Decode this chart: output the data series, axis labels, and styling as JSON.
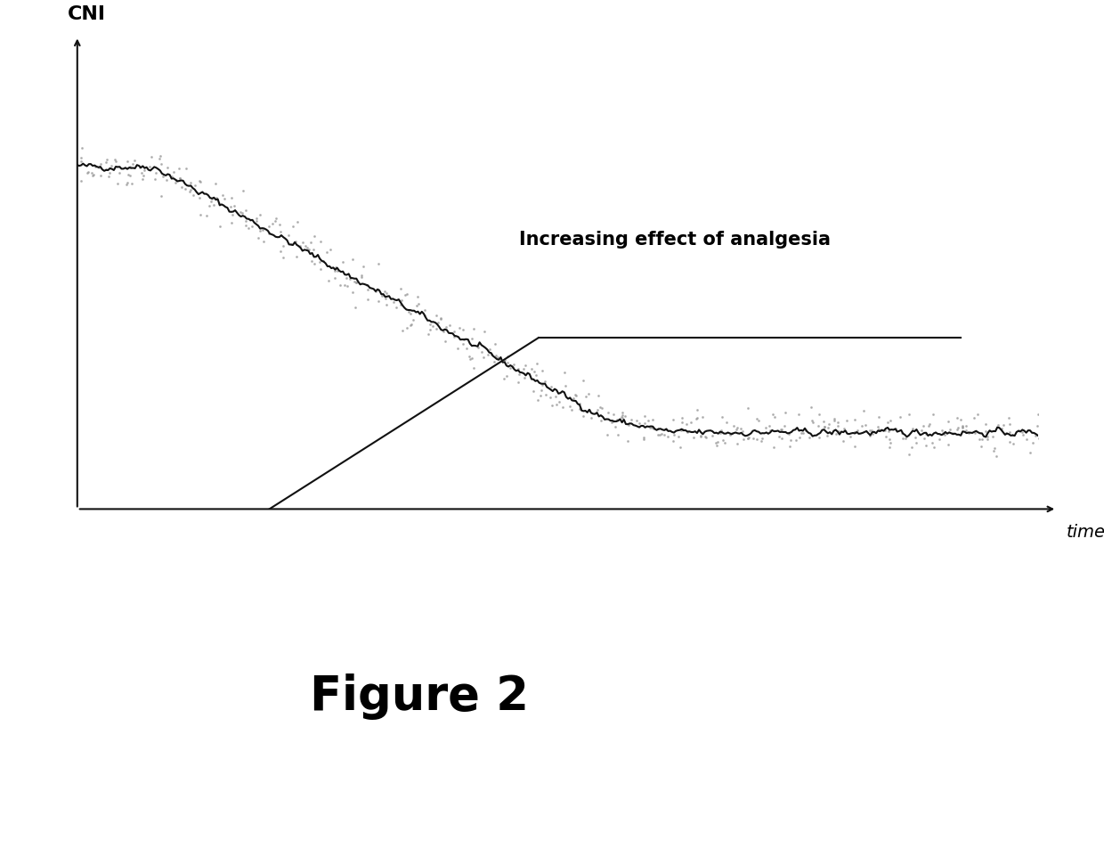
{
  "background_color": "#ffffff",
  "ylabel": "CNI",
  "xlabel": "time",
  "annotation_text": "Increasing effect of analgesia",
  "figure_label": "Figure 2",
  "ylabel_fontsize": 16,
  "xlabel_fontsize": 14,
  "annotation_fontsize": 15,
  "figure_label_fontsize": 38,
  "line_color": "#111111",
  "noise_color": "#999999",
  "axis_color": "#111111"
}
